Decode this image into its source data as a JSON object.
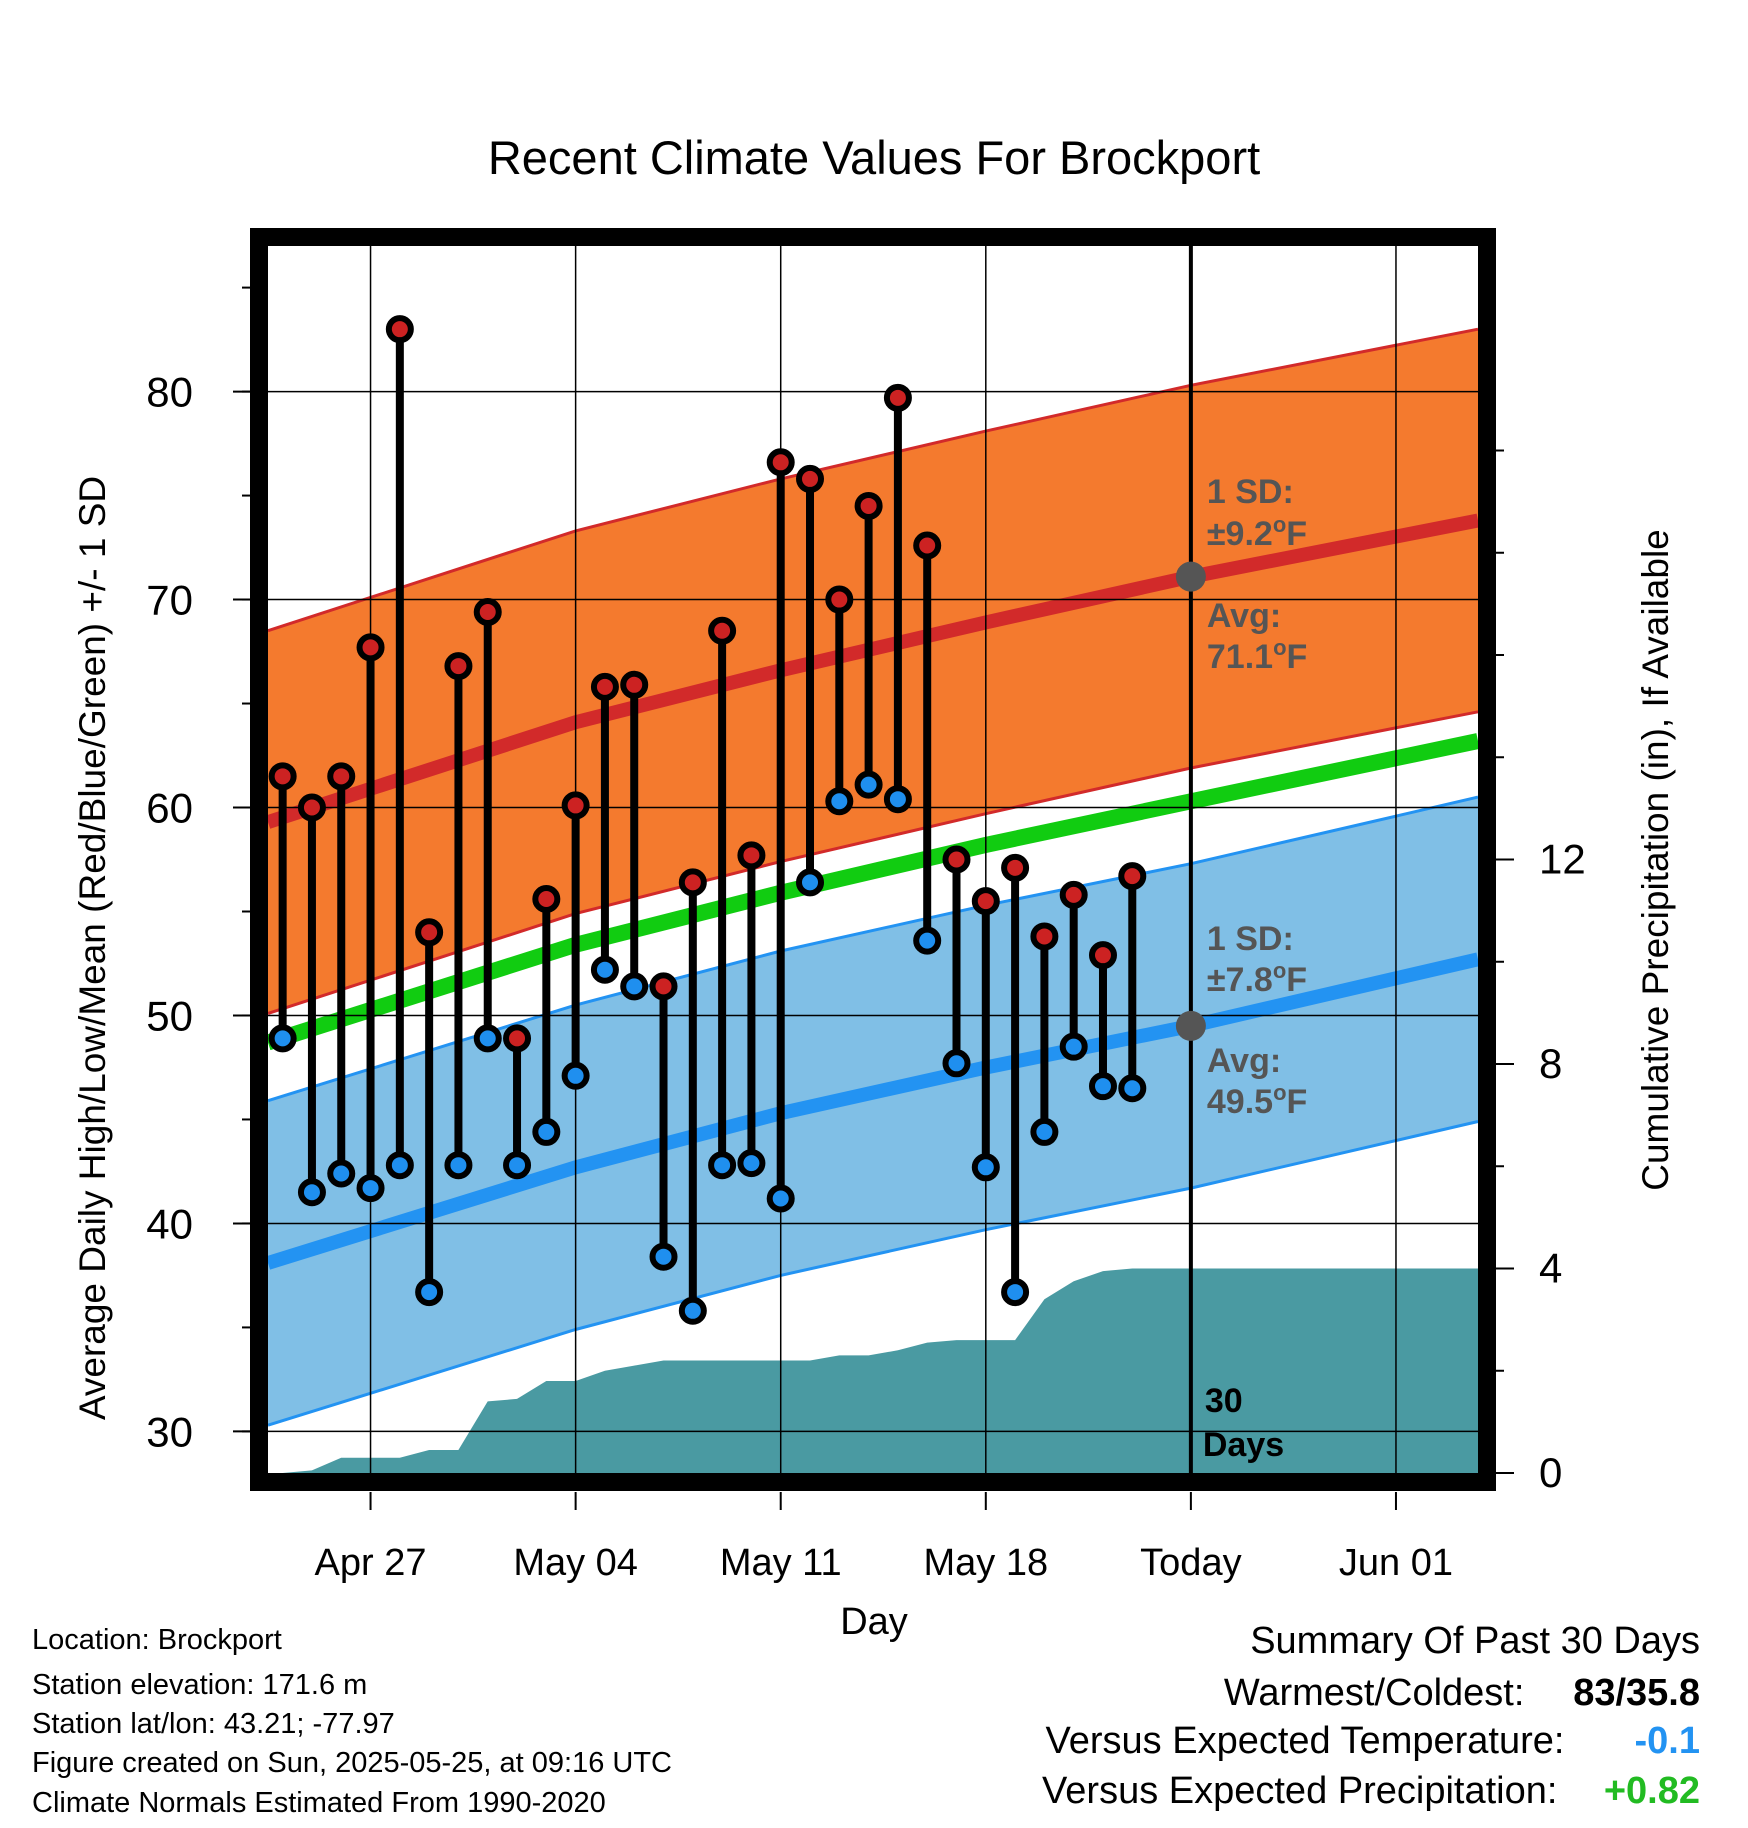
{
  "chart_data": {
    "type": "line",
    "title": "Recent Climate Values For Brockport",
    "xlabel": "Day",
    "ylabel": "Average Daily High/Low/Mean (Red/Blue/Green) +/- 1 SD",
    "y2label": "Cumulative Precipitation (in), If Available",
    "ylim": [
      28,
      87
    ],
    "y2lim": [
      0,
      24
    ],
    "yticks": [
      "30",
      "40",
      "50",
      "60",
      "70",
      "80"
    ],
    "y2ticks": [
      "0",
      "4",
      "8",
      "12"
    ],
    "x_axis_labels": [
      {
        "date": "2025-04-27",
        "label": "Apr 27"
      },
      {
        "date": "2025-05-04",
        "label": "May 04"
      },
      {
        "date": "2025-05-11",
        "label": "May 11"
      },
      {
        "date": "2025-05-18",
        "label": "May 18"
      },
      {
        "date": "2025-05-25",
        "label": "Today"
      },
      {
        "date": "2025-06-01",
        "label": "Jun 01"
      }
    ],
    "xlim": [
      "2025-04-23.5",
      "2025-06-03.8"
    ],
    "today": "2025-05-25",
    "days": [
      {
        "date": "2025-04-24",
        "high": 61.5,
        "low": 48.9
      },
      {
        "date": "2025-04-25",
        "high": 60.0,
        "low": 41.5
      },
      {
        "date": "2025-04-26",
        "high": 61.5,
        "low": 42.4
      },
      {
        "date": "2025-04-27",
        "high": 67.7,
        "low": 41.7
      },
      {
        "date": "2025-04-28",
        "high": 83.0,
        "low": 42.8
      },
      {
        "date": "2025-04-29",
        "high": 54.0,
        "low": 36.7
      },
      {
        "date": "2025-04-30",
        "high": 66.8,
        "low": 42.8
      },
      {
        "date": "2025-05-01",
        "high": 69.4,
        "low": 48.9
      },
      {
        "date": "2025-05-02",
        "high": 48.9,
        "low": 42.8
      },
      {
        "date": "2025-05-03",
        "high": 55.6,
        "low": 44.4
      },
      {
        "date": "2025-05-04",
        "high": 60.1,
        "low": 47.1
      },
      {
        "date": "2025-05-05",
        "high": 65.8,
        "low": 52.2
      },
      {
        "date": "2025-05-06",
        "high": 65.9,
        "low": 51.4
      },
      {
        "date": "2025-05-07",
        "high": 51.4,
        "low": 38.4
      },
      {
        "date": "2025-05-08",
        "high": 56.4,
        "low": 35.8
      },
      {
        "date": "2025-05-09",
        "high": 68.5,
        "low": 42.8
      },
      {
        "date": "2025-05-10",
        "high": 57.7,
        "low": 42.9
      },
      {
        "date": "2025-05-11",
        "high": 76.6,
        "low": 41.2
      },
      {
        "date": "2025-05-12",
        "high": 75.8,
        "low": 56.4
      },
      {
        "date": "2025-05-13",
        "high": 70.0,
        "low": 60.3
      },
      {
        "date": "2025-05-14",
        "high": 74.5,
        "low": 61.1
      },
      {
        "date": "2025-05-15",
        "high": 79.7,
        "low": 60.4
      },
      {
        "date": "2025-05-16",
        "high": 72.6,
        "low": 53.6
      },
      {
        "date": "2025-05-17",
        "high": 57.5,
        "low": 47.7
      },
      {
        "date": "2025-05-18",
        "high": 55.5,
        "low": 42.7
      },
      {
        "date": "2025-05-19",
        "high": 57.1,
        "low": 36.7
      },
      {
        "date": "2025-05-20",
        "high": 53.8,
        "low": 44.4
      },
      {
        "date": "2025-05-21",
        "high": 55.8,
        "low": 48.5
      },
      {
        "date": "2025-05-22",
        "high": 52.9,
        "low": 46.6
      },
      {
        "date": "2025-05-23",
        "high": 56.7,
        "low": 46.5
      }
    ],
    "normals": {
      "dates": [
        "2025-04-23.5",
        "2025-05-04",
        "2025-05-11",
        "2025-05-18",
        "2025-05-25",
        "2025-06-03.8"
      ],
      "high_avg": [
        59.3,
        64.1,
        66.6,
        68.9,
        71.1,
        73.8
      ],
      "low_avg": [
        38.1,
        42.7,
        45.3,
        47.5,
        49.5,
        52.7
      ],
      "mean_avg": [
        48.7,
        53.4,
        55.9,
        58.2,
        60.3,
        63.2
      ],
      "high_sd": 9.2,
      "low_sd": 7.8
    },
    "precip_cumulative": [
      {
        "date": "2025-04-24",
        "value": 0.0
      },
      {
        "date": "2025-04-25",
        "value": 0.05
      },
      {
        "date": "2025-04-26",
        "value": 0.3
      },
      {
        "date": "2025-04-27",
        "value": 0.3
      },
      {
        "date": "2025-04-28",
        "value": 0.3
      },
      {
        "date": "2025-04-29",
        "value": 0.45
      },
      {
        "date": "2025-04-30",
        "value": 0.45
      },
      {
        "date": "2025-05-01",
        "value": 1.4
      },
      {
        "date": "2025-05-02",
        "value": 1.45
      },
      {
        "date": "2025-05-03",
        "value": 1.8
      },
      {
        "date": "2025-05-04",
        "value": 1.8
      },
      {
        "date": "2025-05-05",
        "value": 2.0
      },
      {
        "date": "2025-05-06",
        "value": 2.1
      },
      {
        "date": "2025-05-07",
        "value": 2.2
      },
      {
        "date": "2025-05-08",
        "value": 2.2
      },
      {
        "date": "2025-05-09",
        "value": 2.2
      },
      {
        "date": "2025-05-10",
        "value": 2.2
      },
      {
        "date": "2025-05-11",
        "value": 2.2
      },
      {
        "date": "2025-05-12",
        "value": 2.2
      },
      {
        "date": "2025-05-13",
        "value": 2.3
      },
      {
        "date": "2025-05-14",
        "value": 2.3
      },
      {
        "date": "2025-05-15",
        "value": 2.4
      },
      {
        "date": "2025-05-16",
        "value": 2.55
      },
      {
        "date": "2025-05-17",
        "value": 2.6
      },
      {
        "date": "2025-05-18",
        "value": 2.6
      },
      {
        "date": "2025-05-19",
        "value": 2.6
      },
      {
        "date": "2025-05-20",
        "value": 3.4
      },
      {
        "date": "2025-05-21",
        "value": 3.75
      },
      {
        "date": "2025-05-22",
        "value": 3.95
      },
      {
        "date": "2025-05-23",
        "value": 4.0
      },
      {
        "date": "2025-05-24",
        "value": 4.0
      },
      {
        "date": "2025-06-03.8",
        "value": 4.0
      }
    ],
    "annotations": {
      "high_sd_line1": "1 SD:",
      "high_sd_line2": "±9.2",
      "high_avg_line1": "Avg:",
      "high_avg_line2": "71.1",
      "low_sd_line1": "1 SD:",
      "low_sd_line2": "±7.8",
      "low_avg_line1": "Avg:",
      "low_avg_line2": "49.5",
      "degree_symbol": "o",
      "unit": "F",
      "window_line1": "30",
      "window_line2": "Days"
    },
    "colors": {
      "high_band": "#f47a2e",
      "high_line": "#d22a2a",
      "low_band": "#80bfe6",
      "low_line": "#2393f2",
      "mean_line": "#11cc11",
      "precip": "#4a9aa2",
      "high_dot": "#cc2222",
      "low_dot": "#1f8fef",
      "annotation": "#555555",
      "today_dot": "#555555"
    }
  },
  "info": {
    "location": "Location: Brockport",
    "elevation": "Station elevation: 171.6 m",
    "latlon": "Station lat/lon: 43.21; -77.97",
    "created": "Figure created on Sun, 2025-05-25, at 09:16 UTC",
    "normals": "Climate Normals Estimated From 1990-2020"
  },
  "summary": {
    "title": "Summary Of Past 30 Days",
    "warmest_label": "Warmest/Coldest:",
    "warmest_value": "83/35.8",
    "temp_label": "Versus Expected Temperature:",
    "temp_value": "-0.1",
    "temp_color": "#2393f2",
    "precip_label": "Versus Expected Precipitation:",
    "precip_value": "+0.82",
    "precip_color": "#22bb22"
  }
}
